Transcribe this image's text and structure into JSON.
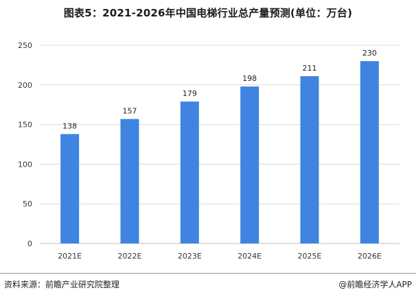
{
  "title": "图表5：2021-2026年中国电梯行业总产量预测(单位：万台)",
  "source": "资料来源：前瞻产业研究院整理",
  "brand": "@前瞻经济学人APP",
  "colors": {
    "bar": "#3f84e0",
    "grid": "#d9d9d9",
    "axis": "#bfbfbf"
  },
  "chart_data": {
    "type": "bar",
    "title": "图表5：2021-2026年中国电梯行业总产量预测(单位：万台)",
    "categories": [
      "2021E",
      "2022E",
      "2023E",
      "2024E",
      "2025E",
      "2026E"
    ],
    "values": [
      138,
      157,
      179,
      198,
      211,
      230
    ],
    "ylim": [
      0,
      250
    ],
    "yticks": [
      0,
      50,
      100,
      150,
      200,
      250
    ],
    "grid": true,
    "data_labels": true
  }
}
